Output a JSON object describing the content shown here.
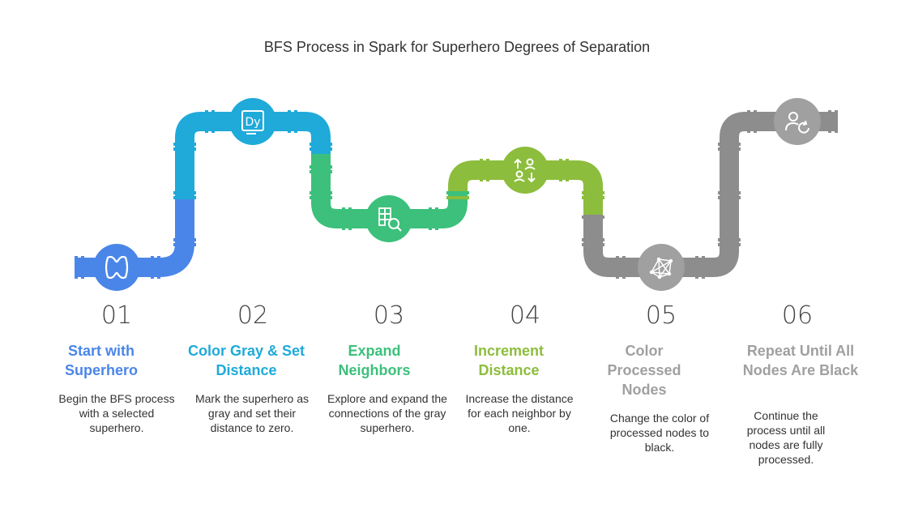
{
  "title": "BFS Process in Spark for Superhero Degrees of Separation",
  "colors": {
    "blue": "#4a86e8",
    "cyan": "#1faad9",
    "teal": "#3cc07b",
    "green": "#8cbd3c",
    "gray": "#8d8d8d",
    "gray_light": "#a0a0a0"
  },
  "steps": [
    {
      "number": "01",
      "title": "Start with Superhero",
      "description": "Begin the BFS process with a selected superhero.",
      "icon": "hero-mask-icon",
      "color": "#4a86e8"
    },
    {
      "number": "02",
      "title": "Color Gray & Set Distance",
      "description": "Mark the superhero as gray and set their distance to zero.",
      "icon": "text-style-icon",
      "color": "#1faad9"
    },
    {
      "number": "03",
      "title": "Expand Neighbors",
      "description": "Explore and expand the connections of the gray superhero.",
      "icon": "grid-search-icon",
      "color": "#3cc07b"
    },
    {
      "number": "04",
      "title": "Increment Distance",
      "description": "Increase the distance for each neighbor by one.",
      "icon": "user-swap-icon",
      "color": "#8cbd3c"
    },
    {
      "number": "05",
      "title": "Color Processed Nodes",
      "description": "Change the color of processed nodes to black.",
      "icon": "network-icon",
      "color": "#a0a0a0"
    },
    {
      "number": "06",
      "title": "Repeat Until All Nodes Are Black",
      "description": "Continue the process until all nodes are fully processed.",
      "icon": "user-refresh-icon",
      "color": "#a0a0a0"
    }
  ]
}
